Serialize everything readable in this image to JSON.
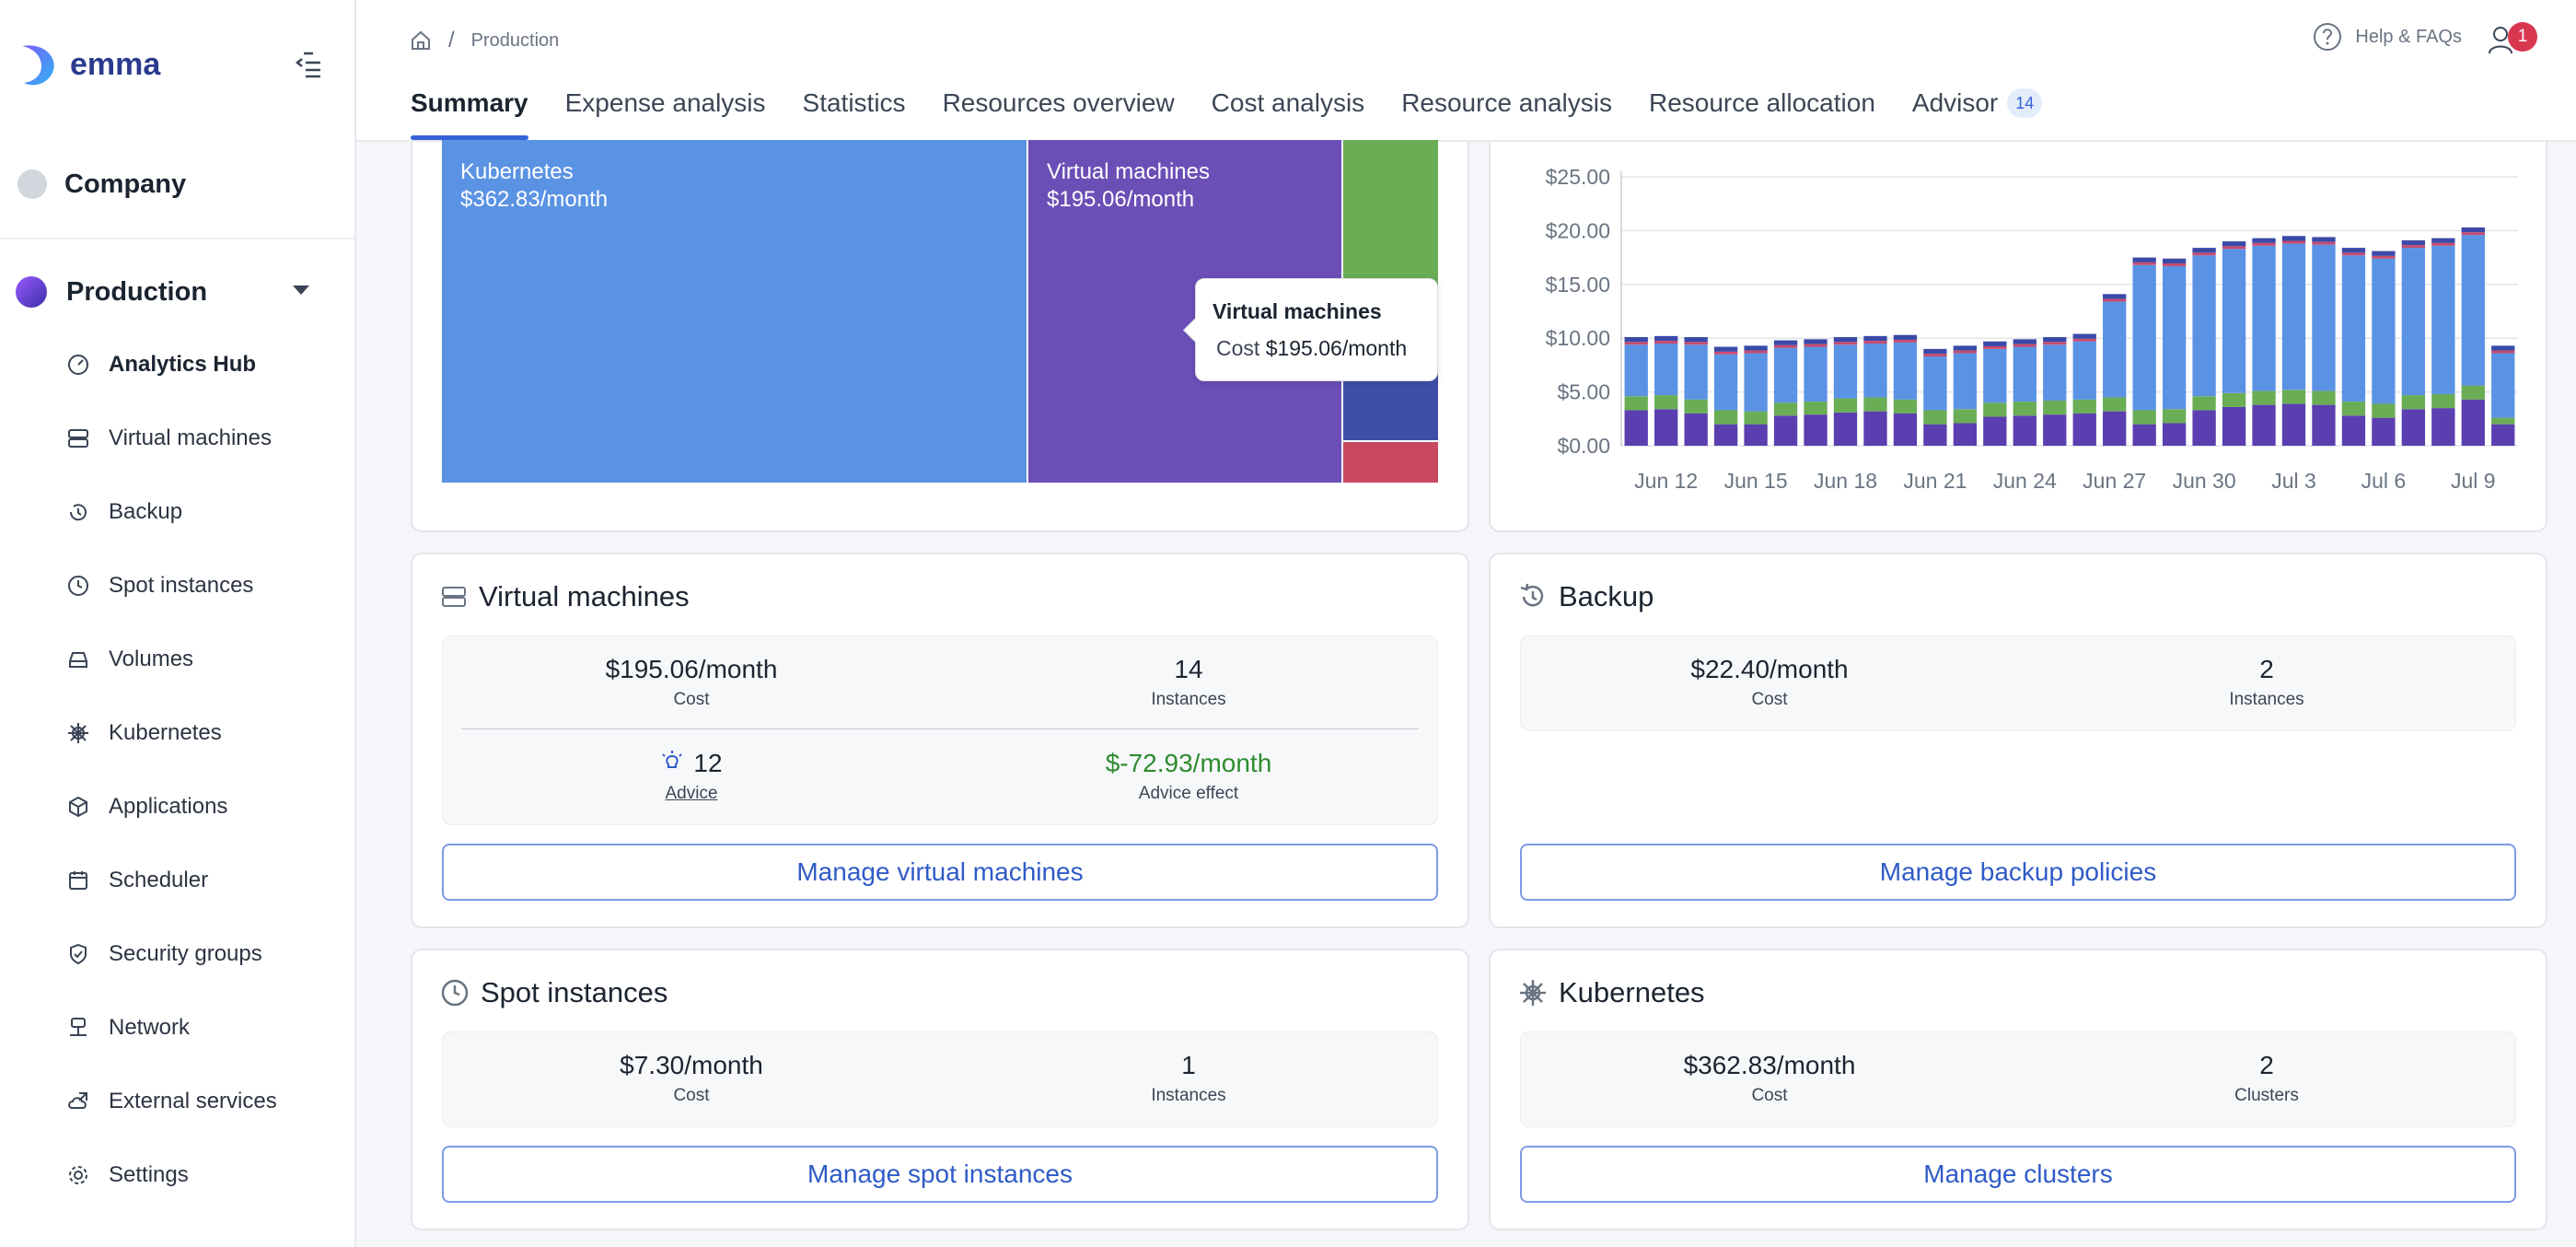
{
  "brand": {
    "name": "emma"
  },
  "sidebar": {
    "company": "Company",
    "project": "Production",
    "items": [
      {
        "label": "Analytics Hub",
        "icon": "gauge-icon"
      },
      {
        "label": "Virtual machines",
        "icon": "server-icon"
      },
      {
        "label": "Backup",
        "icon": "history-icon"
      },
      {
        "label": "Spot instances",
        "icon": "clock-icon"
      },
      {
        "label": "Volumes",
        "icon": "drive-icon"
      },
      {
        "label": "Kubernetes",
        "icon": "helm-icon"
      },
      {
        "label": "Applications",
        "icon": "cube-icon"
      },
      {
        "label": "Scheduler",
        "icon": "calendar-icon"
      },
      {
        "label": "Security groups",
        "icon": "shield-icon"
      },
      {
        "label": "Network",
        "icon": "network-icon"
      },
      {
        "label": "External services",
        "icon": "cloud-link-icon"
      },
      {
        "label": "Settings",
        "icon": "gear-icon"
      }
    ]
  },
  "header": {
    "breadcrumb": "Production",
    "help": "Help & FAQs",
    "notifications": "1",
    "tabs": [
      "Summary",
      "Expense analysis",
      "Statistics",
      "Resources overview",
      "Cost analysis",
      "Resource analysis",
      "Resource allocation",
      "Advisor"
    ],
    "advisor_count": "14"
  },
  "treemap": {
    "k8s": {
      "name": "Kubernetes",
      "value": "$362.83/month",
      "color": "#5b93e4"
    },
    "vm": {
      "name": "Virtual machines",
      "value": "$195.06/month",
      "color": "#6b4fb6"
    },
    "tooltip": {
      "title": "Virtual machines",
      "label": "Cost",
      "value": "$195.06/month"
    }
  },
  "chart_data": {
    "type": "bar",
    "stacked": true,
    "yticks": [
      "$25.00",
      "$20.00",
      "$15.00",
      "$10.00",
      "$5.00",
      "$0.00"
    ],
    "ylim": [
      0,
      25
    ],
    "xticks": [
      "Jun 12",
      "Jun 15",
      "Jun 18",
      "Jun 21",
      "Jun 24",
      "Jun 27",
      "Jun 30",
      "Jul 3",
      "Jul 6",
      "Jul 9"
    ],
    "colors": [
      "#5b3fb0",
      "#6aad55",
      "#5b93e4",
      "#c84a6e",
      "#3b4aa8"
    ],
    "totals": [
      10.1,
      10.2,
      10.1,
      9.2,
      9.3,
      9.8,
      9.9,
      10.1,
      10.2,
      10.3,
      9.0,
      9.3,
      9.7,
      9.9,
      10.1,
      10.4,
      14.1,
      17.5,
      17.4,
      18.4,
      19.0,
      19.3,
      19.5,
      19.4,
      18.4,
      18.1,
      19.1,
      19.3,
      20.3,
      9.3
    ],
    "bottom": [
      3.3,
      3.4,
      3.0,
      2.0,
      2.0,
      2.8,
      2.9,
      3.1,
      3.2,
      3.0,
      2.0,
      2.1,
      2.7,
      2.8,
      2.9,
      3.0,
      3.2,
      2.0,
      2.1,
      3.3,
      3.6,
      3.8,
      3.9,
      3.8,
      2.8,
      2.6,
      3.4,
      3.5,
      4.3,
      2.0
    ],
    "green": [
      1.3,
      1.3,
      1.3,
      1.3,
      1.2,
      1.2,
      1.2,
      1.3,
      1.3,
      1.3,
      1.3,
      1.3,
      1.3,
      1.3,
      1.3,
      1.3,
      1.3,
      1.3,
      1.3,
      1.3,
      1.3,
      1.3,
      1.3,
      1.3,
      1.3,
      1.3,
      1.3,
      1.3,
      1.3,
      0.6
    ]
  },
  "vm_card": {
    "title": "Virtual machines",
    "cost": "$195.06/month",
    "cost_label": "Cost",
    "instances": "14",
    "instances_label": "Instances",
    "advice": "12",
    "advice_label": "Advice",
    "effect": "$-72.93/month",
    "effect_label": "Advice effect",
    "button": "Manage virtual machines"
  },
  "backup_card": {
    "title": "Backup",
    "cost": "$22.40/month",
    "cost_label": "Cost",
    "instances": "2",
    "instances_label": "Instances",
    "button": "Manage backup policies"
  },
  "spot_card": {
    "title": "Spot instances",
    "cost": "$7.30/month",
    "cost_label": "Cost",
    "instances": "1",
    "instances_label": "Instances",
    "button": "Manage spot instances"
  },
  "k8s_card": {
    "title": "Kubernetes",
    "cost": "$362.83/month",
    "cost_label": "Cost",
    "clusters": "2",
    "clusters_label": "Clusters",
    "button": "Manage clusters"
  }
}
